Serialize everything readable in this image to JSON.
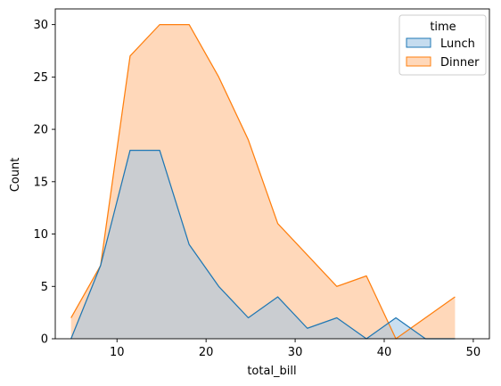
{
  "chart_data": {
    "type": "area",
    "title": "",
    "xlabel": "total_bill",
    "ylabel": "Count",
    "xlim": [
      3.07,
      51.81
    ],
    "ylim": [
      0,
      31.5
    ],
    "xticks": [
      10,
      20,
      30,
      40,
      50
    ],
    "yticks": [
      0,
      5,
      10,
      15,
      20,
      25,
      30
    ],
    "xtick_labels": [
      "10",
      "20",
      "30",
      "40",
      "50"
    ],
    "ytick_labels": [
      "0",
      "5",
      "10",
      "15",
      "20",
      "25",
      "30"
    ],
    "grid": false,
    "legend": {
      "title": "time",
      "placement": "top-right"
    },
    "x": [
      4.84,
      8.16,
      11.47,
      14.79,
      18.1,
      21.42,
      24.74,
      28.05,
      31.37,
      34.68,
      38.0,
      41.31,
      44.63,
      47.95
    ],
    "series": [
      {
        "name": "Lunch",
        "color": "#1f77b4",
        "fill": "#9ec4e4",
        "values": [
          0,
          7,
          18,
          18,
          9,
          5,
          2,
          4,
          1,
          2,
          0,
          2,
          0,
          0
        ]
      },
      {
        "name": "Dinner",
        "color": "#ff7f0e",
        "fill": "#ffd4b2",
        "values": [
          2,
          7,
          27,
          30,
          30,
          25,
          19,
          11,
          8,
          5,
          6,
          0,
          2,
          4
        ]
      }
    ]
  }
}
